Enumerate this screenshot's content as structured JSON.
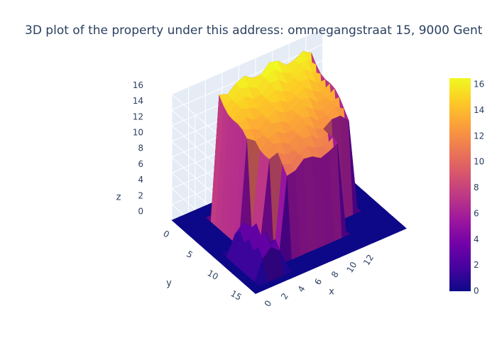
{
  "chart_data": {
    "type": "surface",
    "title": "3D plot of the property under this address: ommegangstraat 15, 9000 Gent",
    "axes": {
      "x": {
        "label": "x",
        "range": [
          0,
          18
        ],
        "ticks": [
          "0",
          "2",
          "4",
          "6",
          "8",
          "10",
          "12"
        ]
      },
      "y": {
        "label": "y",
        "range": [
          0,
          18
        ],
        "ticks": [
          "0",
          "5",
          "10",
          "15"
        ]
      },
      "z": {
        "label": "z",
        "range": [
          0,
          16
        ],
        "ticks": [
          "0",
          "2",
          "4",
          "6",
          "8",
          "10",
          "12",
          "14",
          "16"
        ]
      }
    },
    "colorbar": {
      "min": 0,
      "max": 16.5,
      "ticks": [
        "0",
        "2",
        "4",
        "6",
        "8",
        "10",
        "12",
        "14",
        "16"
      ],
      "colors": [
        "#0d0887",
        "#46039f",
        "#7201a8",
        "#9c179e",
        "#bd3786",
        "#d8576b",
        "#ed7953",
        "#fb9f3a",
        "#fdca26",
        "#f0f921"
      ]
    },
    "surface": {
      "grid_size": 19,
      "base_height": 0,
      "rooftop_height_range": [
        10.5,
        16.5
      ],
      "annex_height_range": [
        2.5,
        3.5
      ]
    },
    "grid": true,
    "background": "#e5ecf6"
  }
}
